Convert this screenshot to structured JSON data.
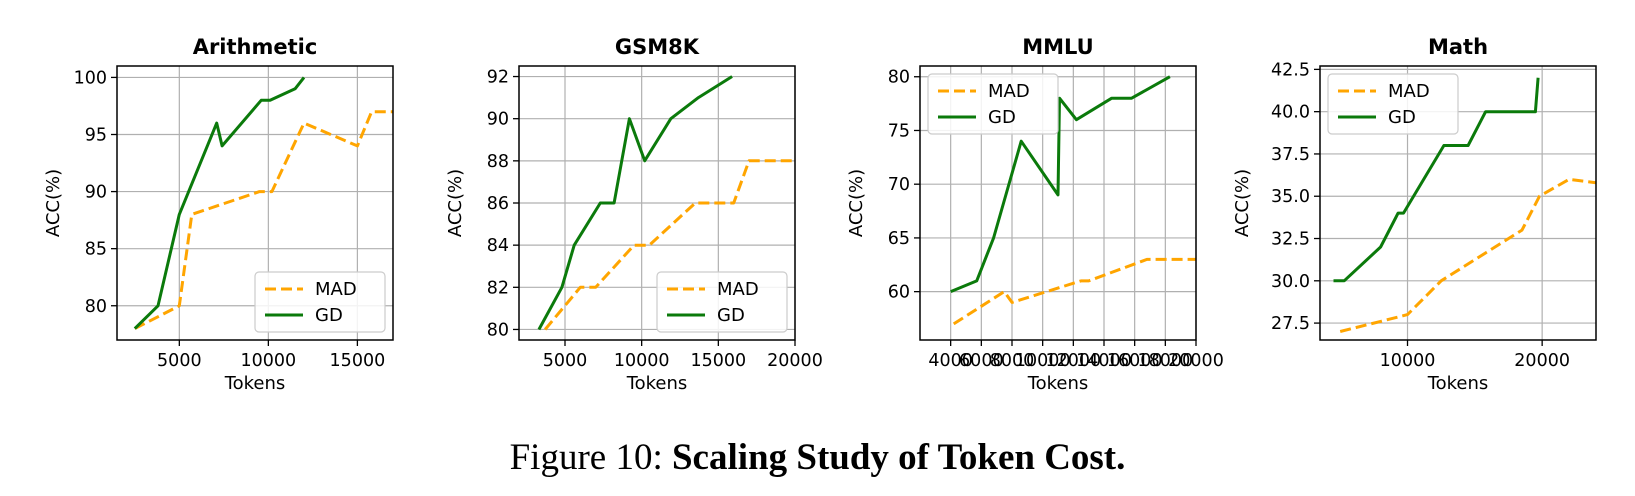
{
  "caption": {
    "prefix": "Figure 10:",
    "title": "Scaling Study of Token Cost."
  },
  "colors": {
    "MAD": "#FFA500",
    "GD": "#0B7A0B",
    "grid": "#b0b0b0"
  },
  "chart_data": [
    {
      "type": "line",
      "title": "Arithmetic",
      "xlabel": "Tokens",
      "ylabel": "ACC(%)",
      "xlim": [
        1500,
        17000
      ],
      "ylim": [
        77,
        101
      ],
      "xticks": [
        5000,
        10000,
        15000
      ],
      "yticks": [
        80,
        85,
        90,
        95,
        100
      ],
      "grid": true,
      "legend": "lower-right",
      "series": [
        {
          "name": "MAD",
          "style": "dashed",
          "x": [
            2500,
            5000,
            5700,
            9500,
            10200,
            12000,
            15000,
            15800,
            17000
          ],
          "y": [
            78,
            80,
            88,
            90,
            90,
            96,
            94,
            97,
            97
          ]
        },
        {
          "name": "GD",
          "style": "solid",
          "x": [
            2500,
            3800,
            5000,
            7100,
            7400,
            9600,
            10100,
            11500,
            12000
          ],
          "y": [
            78,
            80,
            88,
            96,
            94,
            98,
            98,
            99,
            100
          ]
        }
      ]
    },
    {
      "type": "line",
      "title": "GSM8K",
      "xlabel": "Tokens",
      "ylabel": "ACC(%)",
      "xlim": [
        2000,
        20000
      ],
      "ylim": [
        79.5,
        92.5
      ],
      "xticks": [
        5000,
        10000,
        15000,
        20000
      ],
      "yticks": [
        80,
        82,
        84,
        86,
        88,
        90,
        92
      ],
      "grid": true,
      "legend": "lower-right",
      "series": [
        {
          "name": "MAD",
          "style": "dashed",
          "x": [
            3700,
            6000,
            7000,
            9500,
            10500,
            13500,
            16000,
            17000,
            20000
          ],
          "y": [
            80,
            82,
            82,
            84,
            84,
            86,
            86,
            88,
            88
          ]
        },
        {
          "name": "GD",
          "style": "solid",
          "x": [
            3300,
            4800,
            5600,
            7300,
            8200,
            9200,
            10200,
            11900,
            13700,
            15900
          ],
          "y": [
            80,
            82,
            84,
            86,
            86,
            90,
            88,
            90,
            91,
            92
          ]
        }
      ]
    },
    {
      "type": "line",
      "title": "MMLU",
      "xlabel": "Tokens",
      "ylabel": "ACC(%)",
      "xlim": [
        2000,
        20000
      ],
      "ylim": [
        55.5,
        81
      ],
      "xticks": [
        4000,
        6000,
        8000,
        10000,
        12000,
        14000,
        16000,
        18000,
        20000
      ],
      "yticks": [
        60,
        65,
        70,
        75,
        80
      ],
      "grid": true,
      "legend": "upper-left",
      "series": [
        {
          "name": "MAD",
          "style": "dashed",
          "x": [
            4200,
            7500,
            8000,
            12500,
            13000,
            16800,
            20000
          ],
          "y": [
            57,
            60,
            59,
            61,
            61,
            63,
            63
          ]
        },
        {
          "name": "GD",
          "style": "solid",
          "x": [
            4000,
            5700,
            6800,
            8600,
            11000,
            11100,
            12200,
            14500,
            15800,
            18300
          ],
          "y": [
            60,
            61,
            65,
            74,
            69,
            78,
            76,
            78,
            78,
            80
          ]
        }
      ]
    },
    {
      "type": "line",
      "title": "Math",
      "xlabel": "Tokens",
      "ylabel": "ACC(%)",
      "xlim": [
        3500,
        24000
      ],
      "ylim": [
        26.5,
        42.7
      ],
      "xticks": [
        10000,
        20000
      ],
      "yticks": [
        27.5,
        30.0,
        32.5,
        35.0,
        37.5,
        40.0,
        42.5
      ],
      "grid": true,
      "legend": "upper-left",
      "series": [
        {
          "name": "MAD",
          "style": "dashed",
          "x": [
            5000,
            8000,
            10000,
            12500,
            18500,
            19800,
            22000,
            24000
          ],
          "y": [
            27,
            27.6,
            28,
            30,
            33,
            35,
            36,
            35.8
          ]
        },
        {
          "name": "GD",
          "style": "solid",
          "x": [
            4500,
            5300,
            8000,
            9300,
            9700,
            12700,
            14500,
            15800,
            19500,
            19700
          ],
          "y": [
            30,
            30,
            32,
            34,
            34,
            38,
            38,
            40,
            40,
            42
          ]
        }
      ]
    }
  ]
}
